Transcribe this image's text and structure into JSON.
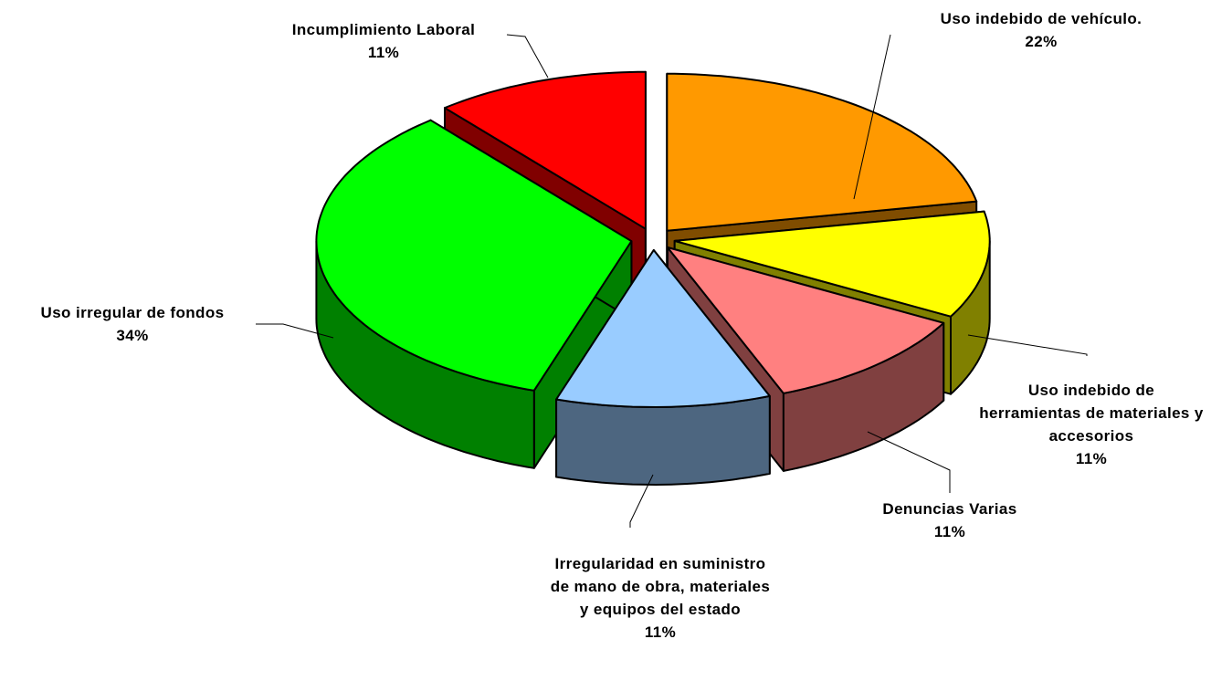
{
  "chart_data": {
    "type": "pie3d",
    "categories": [
      "Uso indebido de vehículo.",
      "Uso indebido de herramientas de materiales y accesorios",
      "Denuncias Varias",
      "Irregularidad en suministro de mano de obra, materiales y equipos del estado",
      "Uso irregular de fondos",
      "Incumplimiento Laboral"
    ],
    "values": [
      22,
      11,
      11,
      11,
      34,
      11
    ],
    "value_labels": [
      "22%",
      "11%",
      "11%",
      "11%",
      "34%",
      "11%"
    ],
    "colors": [
      "#FF9900",
      "#FFFF00",
      "#FF8080",
      "#99CCFF",
      "#00FF00",
      "#FF0000"
    ]
  }
}
